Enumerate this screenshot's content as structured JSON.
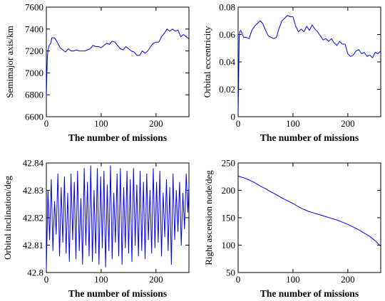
{
  "chart_data": [
    {
      "type": "line",
      "xlabel": "The number of missions",
      "ylabel": "Semimajor axis/km",
      "xlim": [
        0,
        260
      ],
      "ylim": [
        6600,
        7600
      ],
      "xticks": [
        0,
        100,
        200
      ],
      "yticks": [
        6600,
        6800,
        7000,
        7200,
        7400,
        7600
      ],
      "ytick_labels": [
        "6600",
        "6800",
        "7000",
        "7200",
        "7400",
        "7600"
      ],
      "color": "#0000ff",
      "series": [
        {
          "x": [
            0,
            1,
            2,
            3,
            5,
            8,
            10,
            15,
            20,
            25,
            30,
            35,
            40,
            45,
            50,
            55,
            60,
            65,
            70,
            75,
            80,
            85,
            90,
            95,
            100,
            105,
            110,
            115,
            120,
            125,
            130,
            135,
            140,
            145,
            150,
            155,
            160,
            165,
            170,
            175,
            180,
            185,
            190,
            195,
            200,
            205,
            210,
            215,
            220,
            225,
            230,
            235,
            240,
            245,
            250,
            255,
            260
          ],
          "y": [
            6790,
            7000,
            7150,
            7200,
            7250,
            7270,
            7320,
            7320,
            7280,
            7230,
            7210,
            7190,
            7220,
            7200,
            7200,
            7210,
            7200,
            7200,
            7200,
            7210,
            7220,
            7250,
            7240,
            7240,
            7230,
            7250,
            7270,
            7260,
            7290,
            7280,
            7250,
            7220,
            7210,
            7240,
            7220,
            7200,
            7190,
            7160,
            7160,
            7200,
            7180,
            7200,
            7240,
            7270,
            7280,
            7280,
            7330,
            7360,
            7400,
            7380,
            7400,
            7380,
            7390,
            7330,
            7350,
            7330,
            7310
          ]
        }
      ]
    },
    {
      "type": "line",
      "xlabel": "The number of missions",
      "ylabel": "Orbital eccentricity",
      "xlim": [
        0,
        260
      ],
      "ylim": [
        0,
        0.08
      ],
      "xticks": [
        0,
        100,
        200
      ],
      "yticks": [
        0,
        0.02,
        0.04,
        0.06,
        0.08
      ],
      "ytick_labels": [
        "0",
        "0.02",
        "0.04",
        "0.06",
        "0.08"
      ],
      "color": "#0000ff",
      "series": [
        {
          "x": [
            0,
            1,
            2,
            3,
            5,
            8,
            10,
            15,
            20,
            25,
            30,
            35,
            40,
            45,
            50,
            55,
            60,
            65,
            70,
            75,
            80,
            85,
            90,
            95,
            100,
            105,
            110,
            115,
            120,
            125,
            130,
            135,
            140,
            145,
            150,
            155,
            160,
            165,
            170,
            175,
            180,
            185,
            190,
            195,
            200,
            205,
            210,
            215,
            220,
            225,
            230,
            235,
            240,
            245,
            250,
            255,
            260
          ],
          "y": [
            0.002,
            0.03,
            0.058,
            0.062,
            0.063,
            0.06,
            0.058,
            0.058,
            0.057,
            0.063,
            0.066,
            0.068,
            0.07,
            0.068,
            0.063,
            0.059,
            0.058,
            0.057,
            0.058,
            0.065,
            0.07,
            0.072,
            0.074,
            0.073,
            0.073,
            0.066,
            0.062,
            0.064,
            0.062,
            0.066,
            0.063,
            0.067,
            0.064,
            0.062,
            0.059,
            0.056,
            0.057,
            0.055,
            0.057,
            0.054,
            0.052,
            0.055,
            0.053,
            0.053,
            0.046,
            0.044,
            0.045,
            0.048,
            0.049,
            0.046,
            0.047,
            0.044,
            0.045,
            0.043,
            0.047,
            0.046,
            0.048
          ]
        }
      ]
    },
    {
      "type": "line",
      "xlabel": "The number of missions",
      "ylabel": "Orbital inclination/deg",
      "xlim": [
        0,
        260
      ],
      "ylim": [
        42.8,
        42.84
      ],
      "xticks": [
        0,
        100,
        200
      ],
      "yticks": [
        42.8,
        42.81,
        42.82,
        42.83,
        42.84
      ],
      "ytick_labels": [
        "42.8",
        "42.81",
        "42.82",
        "42.83",
        "42.84"
      ],
      "color": "#0000ff",
      "series": [
        {
          "x": [
            0,
            3,
            6,
            9,
            12,
            15,
            18,
            21,
            24,
            27,
            30,
            33,
            36,
            39,
            42,
            45,
            48,
            51,
            54,
            57,
            60,
            63,
            66,
            69,
            72,
            75,
            78,
            81,
            84,
            87,
            90,
            93,
            96,
            99,
            102,
            105,
            108,
            111,
            114,
            117,
            120,
            123,
            126,
            129,
            132,
            135,
            138,
            141,
            144,
            147,
            150,
            153,
            156,
            159,
            162,
            165,
            168,
            171,
            174,
            177,
            180,
            183,
            186,
            189,
            192,
            195,
            198,
            201,
            204,
            207,
            210,
            213,
            216,
            219,
            222,
            225,
            228,
            231,
            234,
            237,
            240,
            243,
            246,
            249,
            252,
            255,
            258,
            260
          ],
          "y": [
            42.801,
            42.83,
            42.812,
            42.834,
            42.808,
            42.826,
            42.814,
            42.836,
            42.806,
            42.831,
            42.811,
            42.835,
            42.807,
            42.829,
            42.804,
            42.836,
            42.812,
            42.833,
            42.805,
            42.837,
            42.808,
            42.827,
            42.803,
            42.838,
            42.81,
            42.833,
            42.806,
            42.839,
            42.804,
            42.83,
            42.807,
            42.838,
            42.803,
            42.835,
            42.809,
            42.837,
            42.802,
            42.832,
            42.808,
            42.839,
            42.805,
            42.829,
            42.811,
            42.836,
            42.806,
            42.838,
            42.803,
            42.831,
            42.809,
            42.837,
            42.807,
            42.834,
            42.804,
            42.838,
            42.81,
            42.832,
            42.806,
            42.837,
            42.808,
            42.833,
            42.805,
            42.836,
            42.812,
            42.83,
            42.807,
            42.838,
            42.809,
            42.833,
            42.811,
            42.837,
            42.806,
            42.829,
            42.813,
            42.834,
            42.808,
            42.831,
            42.803,
            42.836,
            42.812,
            42.83,
            42.815,
            42.833,
            42.81,
            42.829,
            42.816,
            42.836,
            42.822,
            42.832
          ]
        }
      ]
    },
    {
      "type": "line",
      "xlabel": "The number of missions",
      "ylabel": "Right ascension node/deg",
      "xlim": [
        0,
        260
      ],
      "ylim": [
        50,
        250
      ],
      "xticks": [
        0,
        100,
        200
      ],
      "yticks": [
        50,
        100,
        150,
        200,
        250
      ],
      "ytick_labels": [
        "50",
        "100",
        "150",
        "200",
        "250"
      ],
      "color": "#0000ff",
      "series": [
        {
          "x": [
            0,
            10,
            20,
            30,
            40,
            50,
            60,
            70,
            80,
            90,
            100,
            110,
            120,
            130,
            140,
            150,
            160,
            170,
            180,
            190,
            200,
            210,
            220,
            230,
            240,
            250,
            255,
            260
          ],
          "y": [
            226,
            223,
            219,
            214,
            208,
            203,
            197,
            192,
            186,
            181,
            176,
            170,
            165,
            161,
            158,
            155,
            152,
            149,
            146,
            142,
            138,
            133,
            128,
            122,
            116,
            108,
            103,
            98
          ]
        }
      ]
    }
  ]
}
